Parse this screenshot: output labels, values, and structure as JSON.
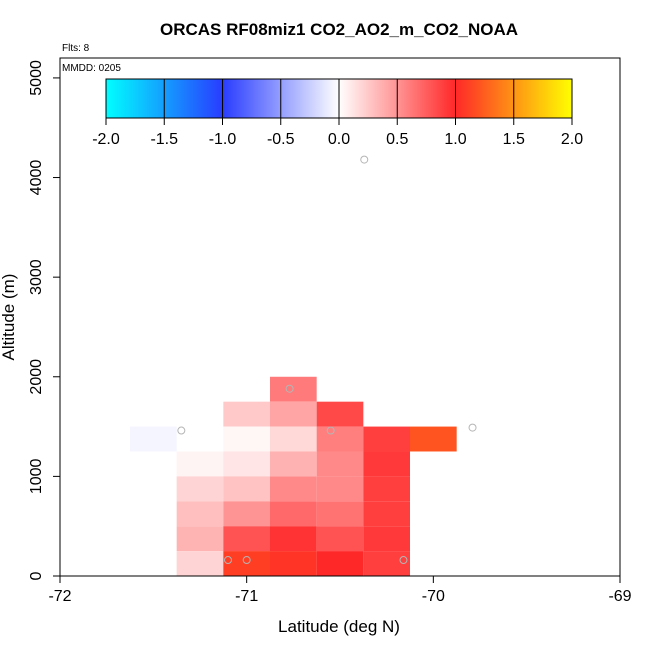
{
  "chart_data": {
    "type": "heatmap",
    "title": "ORCAS RF08miz1 CO2_AO2_m_CO2_NOAA",
    "xlabel": "Latitude (deg N)",
    "ylabel": "Altitude (m)",
    "xlim": [
      -72,
      -69
    ],
    "ylim": [
      0,
      5200
    ],
    "x_ticks": [
      "-72",
      "-71",
      "-70",
      "-69"
    ],
    "x_tick_values": [
      -72,
      -71,
      -70,
      -69
    ],
    "y_ticks": [
      "0",
      "1000",
      "2000",
      "3000",
      "4000",
      "5000"
    ],
    "y_tick_values": [
      0,
      1000,
      2000,
      3000,
      4000,
      5000
    ],
    "flights_label": "Flts: 8",
    "date_label": "MMDD: 0205",
    "colorbar": {
      "range": [
        -2.0,
        2.0
      ],
      "tick_labels": [
        "-2.0",
        "-1.5",
        "-1.0",
        "-0.5",
        "0.0",
        "0.5",
        "1.0",
        "1.5",
        "2.0"
      ],
      "tick_values": [
        -2.0,
        -1.5,
        -1.0,
        -0.5,
        0.0,
        0.5,
        1.0,
        1.5,
        2.0
      ]
    },
    "cell_size": {
      "lat": 0.25,
      "alt": 250
    },
    "cells": [
      {
        "lat": -71.5,
        "alt": 1250,
        "value": -0.05
      },
      {
        "lat": -71.25,
        "alt": 1000,
        "value": 0.05
      },
      {
        "lat": -71.25,
        "alt": 750,
        "value": 0.2
      },
      {
        "lat": -71.25,
        "alt": 500,
        "value": 0.3
      },
      {
        "lat": -71.25,
        "alt": 250,
        "value": 0.35
      },
      {
        "lat": -71.25,
        "alt": 0,
        "value": 0.2
      },
      {
        "lat": -71.0,
        "alt": 1500,
        "value": 0.25
      },
      {
        "lat": -71.0,
        "alt": 1250,
        "value": 0.04
      },
      {
        "lat": -71.0,
        "alt": 1000,
        "value": 0.12
      },
      {
        "lat": -71.0,
        "alt": 750,
        "value": 0.28
      },
      {
        "lat": -71.0,
        "alt": 500,
        "value": 0.5
      },
      {
        "lat": -71.0,
        "alt": 250,
        "value": 0.8
      },
      {
        "lat": -71.0,
        "alt": 0,
        "value": 1.1
      },
      {
        "lat": -70.75,
        "alt": 1750,
        "value": 0.62
      },
      {
        "lat": -70.75,
        "alt": 1500,
        "value": 0.42
      },
      {
        "lat": -70.75,
        "alt": 1250,
        "value": 0.18
      },
      {
        "lat": -70.75,
        "alt": 1000,
        "value": 0.36
      },
      {
        "lat": -70.75,
        "alt": 750,
        "value": 0.55
      },
      {
        "lat": -70.75,
        "alt": 500,
        "value": 0.7
      },
      {
        "lat": -70.75,
        "alt": 250,
        "value": 0.95
      },
      {
        "lat": -70.75,
        "alt": 0,
        "value": 1.05
      },
      {
        "lat": -70.5,
        "alt": 1500,
        "value": 0.85
      },
      {
        "lat": -70.5,
        "alt": 1250,
        "value": 0.6
      },
      {
        "lat": -70.5,
        "alt": 1000,
        "value": 0.55
      },
      {
        "lat": -70.5,
        "alt": 750,
        "value": 0.55
      },
      {
        "lat": -70.5,
        "alt": 500,
        "value": 0.65
      },
      {
        "lat": -70.5,
        "alt": 250,
        "value": 0.8
      },
      {
        "lat": -70.5,
        "alt": 0,
        "value": 1.0
      },
      {
        "lat": -70.25,
        "alt": 1250,
        "value": 0.9
      },
      {
        "lat": -70.25,
        "alt": 1000,
        "value": 0.92
      },
      {
        "lat": -70.25,
        "alt": 750,
        "value": 0.9
      },
      {
        "lat": -70.25,
        "alt": 500,
        "value": 0.9
      },
      {
        "lat": -70.25,
        "alt": 250,
        "value": 0.92
      },
      {
        "lat": -70.25,
        "alt": 0,
        "value": 0.9
      },
      {
        "lat": -70.0,
        "alt": 1250,
        "value": 1.2
      }
    ],
    "points": [
      {
        "lat": -71.35,
        "alt": 1460
      },
      {
        "lat": -71.1,
        "alt": 160
      },
      {
        "lat": -71.0,
        "alt": 160
      },
      {
        "lat": -70.77,
        "alt": 1880
      },
      {
        "lat": -70.55,
        "alt": 1460
      },
      {
        "lat": -70.37,
        "alt": 4180
      },
      {
        "lat": -70.16,
        "alt": 160
      },
      {
        "lat": -69.79,
        "alt": 1490
      }
    ]
  }
}
